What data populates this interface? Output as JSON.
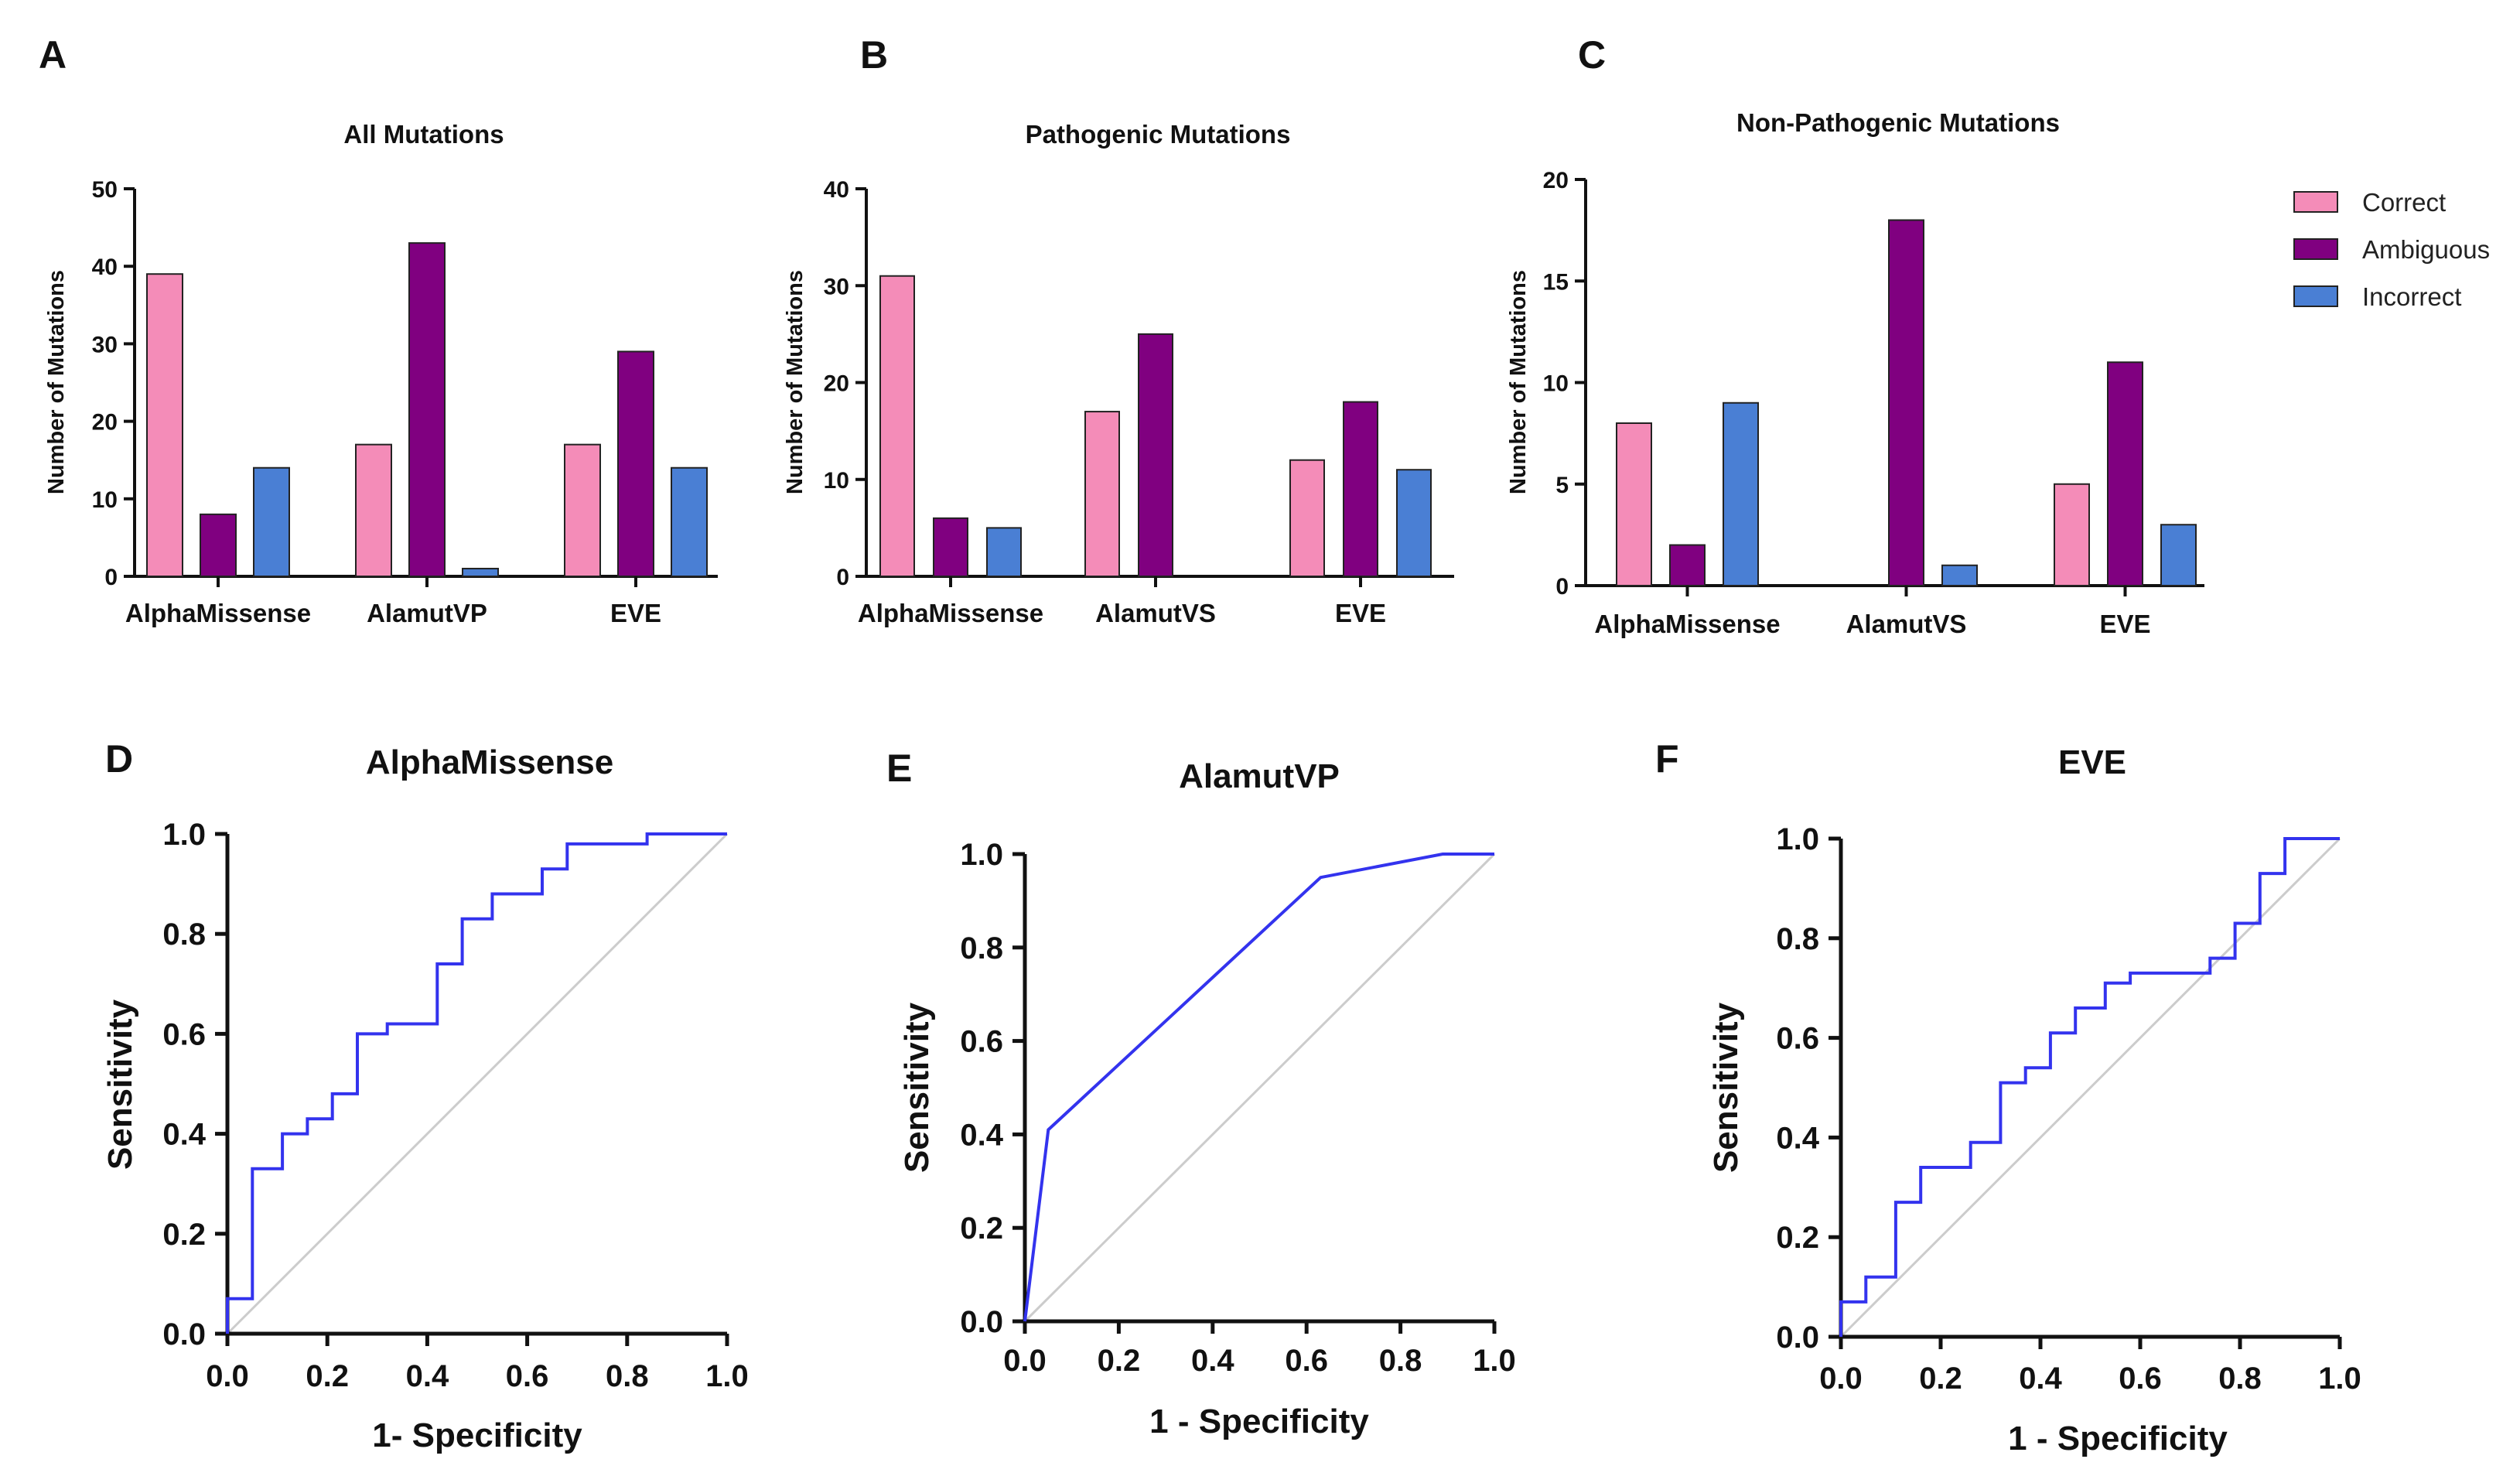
{
  "figure": {
    "colors": {
      "Correct": "#f48cb8",
      "Ambiguous": "#800080",
      "Incorrect": "#4a7fd4",
      "roc_line": "#3333ee",
      "diagonal": "#cccccc",
      "axis": "#111111"
    },
    "legend": [
      "Correct",
      "Ambiguous",
      "Incorrect"
    ]
  },
  "chart_data": [
    {
      "panel": "A",
      "type": "bar",
      "title": "All Mutations",
      "ylabel": "Number of Mutations",
      "xlabel": "",
      "ylim": [
        0,
        50
      ],
      "yticks": [
        0,
        10,
        20,
        30,
        40,
        50
      ],
      "categories": [
        "AlphaMissense",
        "AlamutVP",
        "EVE"
      ],
      "series": [
        {
          "name": "Correct",
          "values": [
            39,
            17,
            17
          ]
        },
        {
          "name": "Ambiguous",
          "values": [
            8,
            43,
            29
          ]
        },
        {
          "name": "Incorrect",
          "values": [
            14,
            1,
            14
          ]
        }
      ]
    },
    {
      "panel": "B",
      "type": "bar",
      "title": "Pathogenic Mutations",
      "ylabel": "Number of Mutations",
      "xlabel": "",
      "ylim": [
        0,
        40
      ],
      "yticks": [
        0,
        10,
        20,
        30,
        40
      ],
      "categories": [
        "AlphaMissense",
        "AlamutVS",
        "EVE"
      ],
      "series": [
        {
          "name": "Correct",
          "values": [
            31,
            17,
            12
          ]
        },
        {
          "name": "Ambiguous",
          "values": [
            6,
            25,
            18
          ]
        },
        {
          "name": "Incorrect",
          "values": [
            5,
            0,
            11
          ]
        }
      ]
    },
    {
      "panel": "C",
      "type": "bar",
      "title": "Non-Pathogenic Mutations",
      "ylabel": "Number of Mutations",
      "xlabel": "",
      "ylim": [
        0,
        20
      ],
      "yticks": [
        0,
        5,
        10,
        15,
        20
      ],
      "categories": [
        "AlphaMissense",
        "AlamutVS",
        "EVE"
      ],
      "series": [
        {
          "name": "Correct",
          "values": [
            8,
            0,
            5
          ]
        },
        {
          "name": "Ambiguous",
          "values": [
            2,
            18,
            11
          ]
        },
        {
          "name": "Incorrect",
          "values": [
            9,
            1,
            3
          ]
        }
      ]
    },
    {
      "panel": "D",
      "type": "line",
      "title": "AlphaMissense",
      "xlabel": "1- Specificity",
      "ylabel": "Sensitivity",
      "xlim": [
        0,
        1
      ],
      "ylim": [
        0,
        1
      ],
      "ticks": [
        "0.0",
        "0.2",
        "0.4",
        "0.6",
        "0.8",
        "1.0"
      ],
      "x": [
        0,
        0,
        0.05,
        0.05,
        0.11,
        0.11,
        0.16,
        0.16,
        0.21,
        0.21,
        0.26,
        0.26,
        0.32,
        0.32,
        0.42,
        0.42,
        0.47,
        0.47,
        0.53,
        0.53,
        0.63,
        0.63,
        0.68,
        0.68,
        0.84,
        0.84,
        1.0
      ],
      "y": [
        0,
        0.07,
        0.07,
        0.33,
        0.33,
        0.4,
        0.4,
        0.43,
        0.43,
        0.48,
        0.48,
        0.6,
        0.6,
        0.62,
        0.62,
        0.74,
        0.74,
        0.83,
        0.83,
        0.88,
        0.88,
        0.93,
        0.93,
        0.98,
        0.98,
        1.0,
        1.0
      ]
    },
    {
      "panel": "E",
      "type": "line",
      "title": "AlamutVP",
      "xlabel": "1 - Specificity",
      "ylabel": "Sensitivity",
      "xlim": [
        0,
        1
      ],
      "ylim": [
        0,
        1
      ],
      "ticks": [
        "0.0",
        "0.2",
        "0.4",
        "0.6",
        "0.8",
        "1.0"
      ],
      "x": [
        0,
        0.05,
        0.63,
        0.89,
        1.0
      ],
      "y": [
        0,
        0.41,
        0.95,
        1.0,
        1.0
      ]
    },
    {
      "panel": "F",
      "type": "line",
      "title": "EVE",
      "xlabel": "1 - Specificity",
      "ylabel": "Sensitivity",
      "xlim": [
        0,
        1
      ],
      "ylim": [
        0,
        1
      ],
      "ticks": [
        "0.0",
        "0.2",
        "0.4",
        "0.6",
        "0.8",
        "1.0"
      ],
      "x": [
        0,
        0,
        0.05,
        0.05,
        0.11,
        0.11,
        0.16,
        0.16,
        0.26,
        0.26,
        0.32,
        0.32,
        0.37,
        0.37,
        0.42,
        0.42,
        0.47,
        0.47,
        0.53,
        0.53,
        0.58,
        0.58,
        0.74,
        0.74,
        0.79,
        0.79,
        0.84,
        0.84,
        0.89,
        0.89,
        1.0
      ],
      "y": [
        0,
        0.07,
        0.07,
        0.12,
        0.12,
        0.27,
        0.27,
        0.34,
        0.34,
        0.39,
        0.39,
        0.51,
        0.51,
        0.54,
        0.54,
        0.61,
        0.61,
        0.66,
        0.66,
        0.71,
        0.71,
        0.73,
        0.73,
        0.76,
        0.76,
        0.83,
        0.83,
        0.93,
        0.93,
        1.0,
        1.0
      ]
    }
  ]
}
